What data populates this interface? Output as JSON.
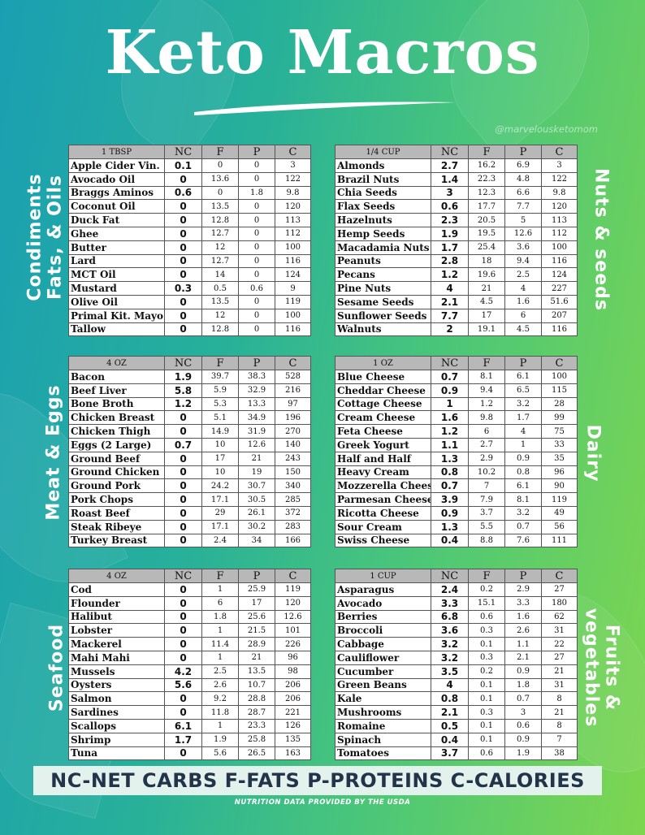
{
  "title": "Keto Macros",
  "handle": "@marvelousketomom",
  "legend": "NC-NET CARBS  F-FATS  P-PROTEINS  C-CALORIES",
  "source": "NUTRITION DATA PROVIDED BY THE USDA",
  "colors": {
    "bg_left": "#1a9fb2",
    "bg_right": "#7ed64f",
    "header_gray": "#b8b8b8",
    "legend_text": "#23344a"
  },
  "headers": {
    "nc": "NC",
    "f": "F",
    "p": "P",
    "c": "C"
  },
  "sections": {
    "condiments": {
      "label_line1": "Condiments",
      "label_line2": "Fats, & Oils",
      "unit": "1 TBSP",
      "rows": [
        [
          "Apple Cider Vin.",
          "0.1",
          "0",
          "0",
          "3"
        ],
        [
          "Avocado Oil",
          "0",
          "13.6",
          "0",
          "122"
        ],
        [
          "Braggs Aminos",
          "0.6",
          "0",
          "1.8",
          "9.8"
        ],
        [
          "Coconut Oil",
          "0",
          "13.5",
          "0",
          "120"
        ],
        [
          "Duck Fat",
          "0",
          "12.8",
          "0",
          "113"
        ],
        [
          "Ghee",
          "0",
          "12.7",
          "0",
          "112"
        ],
        [
          "Butter",
          "0",
          "12",
          "0",
          "100"
        ],
        [
          "Lard",
          "0",
          "12.7",
          "0",
          "116"
        ],
        [
          "MCT Oil",
          "0",
          "14",
          "0",
          "124"
        ],
        [
          "Mustard",
          "0.3",
          "0.5",
          "0.6",
          "9"
        ],
        [
          "Olive Oil",
          "0",
          "13.5",
          "0",
          "119"
        ],
        [
          "Primal Kit. Mayo",
          "0",
          "12",
          "0",
          "100"
        ],
        [
          "Tallow",
          "0",
          "12.8",
          "0",
          "116"
        ]
      ]
    },
    "nuts": {
      "label_line1": "Nuts & seeds",
      "label_line2": "",
      "unit": "1/4  CUP",
      "rows": [
        [
          "Almonds",
          "2.7",
          "16.2",
          "6.9",
          "3"
        ],
        [
          "Brazil Nuts",
          "1.4",
          "22.3",
          "4.8",
          "122"
        ],
        [
          "Chia Seeds",
          "3",
          "12.3",
          "6.6",
          "9.8"
        ],
        [
          "Flax Seeds",
          "0.6",
          "17.7",
          "7.7",
          "120"
        ],
        [
          "Hazelnuts",
          "2.3",
          "20.5",
          "5",
          "113"
        ],
        [
          "Hemp Seeds",
          "1.9",
          "19.5",
          "12.6",
          "112"
        ],
        [
          "Macadamia Nuts",
          "1.7",
          "25.4",
          "3.6",
          "100"
        ],
        [
          "Peanuts",
          "2.8",
          "18",
          "9.4",
          "116"
        ],
        [
          "Pecans",
          "1.2",
          "19.6",
          "2.5",
          "124"
        ],
        [
          "Pine Nuts",
          "4",
          "21",
          "4",
          "227"
        ],
        [
          "Sesame Seeds",
          "2.1",
          "4.5",
          "1.6",
          "51.6"
        ],
        [
          "Sunflower Seeds",
          "7.7",
          "17",
          "6",
          "207"
        ],
        [
          "Walnuts",
          "2",
          "19.1",
          "4.5",
          "116"
        ]
      ]
    },
    "meat": {
      "label_line1": "Meat & Eggs",
      "label_line2": "",
      "unit": "4 OZ",
      "rows": [
        [
          "Bacon",
          "1.9",
          "39.7",
          "38.3",
          "528"
        ],
        [
          "Beef Liver",
          "5.8",
          "5.9",
          "32.9",
          "216"
        ],
        [
          "Bone Broth",
          "1.2",
          "5.3",
          "13.3",
          "97"
        ],
        [
          "Chicken Breast",
          "0",
          "5.1",
          "34.9",
          "196"
        ],
        [
          "Chicken Thigh",
          "0",
          "14.9",
          "31.9",
          "270"
        ],
        [
          "Eggs (2 Large)",
          "0.7",
          "10",
          "12.6",
          "140"
        ],
        [
          "Ground Beef",
          "0",
          "17",
          "21",
          "243"
        ],
        [
          "Ground Chicken",
          "0",
          "10",
          "19",
          "150"
        ],
        [
          "Ground Pork",
          "0",
          "24.2",
          "30.7",
          "340"
        ],
        [
          "Pork Chops",
          "0",
          "17.1",
          "30.5",
          "285"
        ],
        [
          "Roast Beef",
          "0",
          "29",
          "26.1",
          "372"
        ],
        [
          "Steak Ribeye",
          "0",
          "17.1",
          "30.2",
          "283"
        ],
        [
          "Turkey Breast",
          "0",
          "2.4",
          "34",
          "166"
        ]
      ]
    },
    "dairy": {
      "label_line1": "Dairy",
      "label_line2": "",
      "unit": "1 OZ",
      "rows": [
        [
          "Blue Cheese",
          "0.7",
          "8.1",
          "6.1",
          "100"
        ],
        [
          "Cheddar  Cheese",
          "0.9",
          "9.4",
          "6.5",
          "115"
        ],
        [
          "Cottage Cheese",
          "1",
          "1.2",
          "3.2",
          "28"
        ],
        [
          "Cream Cheese",
          "1.6",
          "9.8",
          "1.7",
          "99"
        ],
        [
          "Feta Cheese",
          "1.2",
          "6",
          "4",
          "75"
        ],
        [
          "Greek Yogurt",
          "1.1",
          "2.7",
          "1",
          "33"
        ],
        [
          "Half and Half",
          "1.3",
          "2.9",
          "0.9",
          "35"
        ],
        [
          "Heavy Cream",
          "0.8",
          "10.2",
          "0.8",
          "96"
        ],
        [
          "Mozzerella Cheese",
          "0.7",
          "7",
          "6.1",
          "90"
        ],
        [
          "Parmesan Cheese",
          "3.9",
          "7.9",
          "8.1",
          "119"
        ],
        [
          "Ricotta Cheese",
          "0.9",
          "3.7",
          "3.2",
          "49"
        ],
        [
          "Sour Cream",
          "1.3",
          "5.5",
          "0.7",
          "56"
        ],
        [
          "Swiss Cheese",
          "0.4",
          "8.8",
          "7.6",
          "111"
        ]
      ]
    },
    "seafood": {
      "label_line1": "Seafood",
      "label_line2": "",
      "unit": "4 OZ",
      "rows": [
        [
          "Cod",
          "0",
          "1",
          "25.9",
          "119"
        ],
        [
          "Flounder",
          "0",
          "6",
          "17",
          "120"
        ],
        [
          "Halibut",
          "0",
          "1.8",
          "25.6",
          "12.6"
        ],
        [
          "Lobster",
          "0",
          "1",
          "21.5",
          "101"
        ],
        [
          "Mackerel",
          "0",
          "11.4",
          "28.9",
          "226"
        ],
        [
          "Mahi Mahi",
          "0",
          "1",
          "21",
          "96"
        ],
        [
          "Mussels",
          "4.2",
          "2.5",
          "13.5",
          "98"
        ],
        [
          "Oysters",
          "5.6",
          "2.6",
          "10.7",
          "206"
        ],
        [
          "Salmon",
          "0",
          "9.2",
          "28.8",
          "206"
        ],
        [
          "Sardines",
          "0",
          "11.8",
          "28.7",
          "221"
        ],
        [
          "Scallops",
          "6.1",
          "1",
          "23.3",
          "126"
        ],
        [
          "Shrimp",
          "1.7",
          "1.9",
          "25.8",
          "135"
        ],
        [
          "Tuna",
          "0",
          "5.6",
          "26.5",
          "163"
        ]
      ]
    },
    "fruits": {
      "label_line1": "Fruits &",
      "label_line2": "vegetables",
      "unit": "1 CUP",
      "rows": [
        [
          "Asparagus",
          "2.4",
          "0.2",
          "2.9",
          "27"
        ],
        [
          "Avocado",
          "3.3",
          "15.1",
          "3.3",
          "180"
        ],
        [
          "Berries",
          "6.8",
          "0.6",
          "1.6",
          "62"
        ],
        [
          "Broccoli",
          "3.6",
          "0.3",
          "2.6",
          "31"
        ],
        [
          "Cabbage",
          "3.2",
          "0.1",
          "1.1",
          "22"
        ],
        [
          "Cauliflower",
          "3.2",
          "0.3",
          "2.1",
          "27"
        ],
        [
          "Cucumber",
          "3.5",
          "0.2",
          "0.9",
          "21"
        ],
        [
          "Green Beans",
          "4",
          "0.1",
          "1.8",
          "31"
        ],
        [
          "Kale",
          "0.8",
          "0.1",
          "0.7",
          "8"
        ],
        [
          "Mushrooms",
          "2.1",
          "0.3",
          "3",
          "21"
        ],
        [
          "Romaine",
          "0.5",
          "0.1",
          "0.6",
          "8"
        ],
        [
          "Spinach",
          "0.4",
          "0.1",
          "0.9",
          "7"
        ],
        [
          "Tomatoes",
          "3.7",
          "0.6",
          "1.9",
          "38"
        ]
      ]
    }
  }
}
